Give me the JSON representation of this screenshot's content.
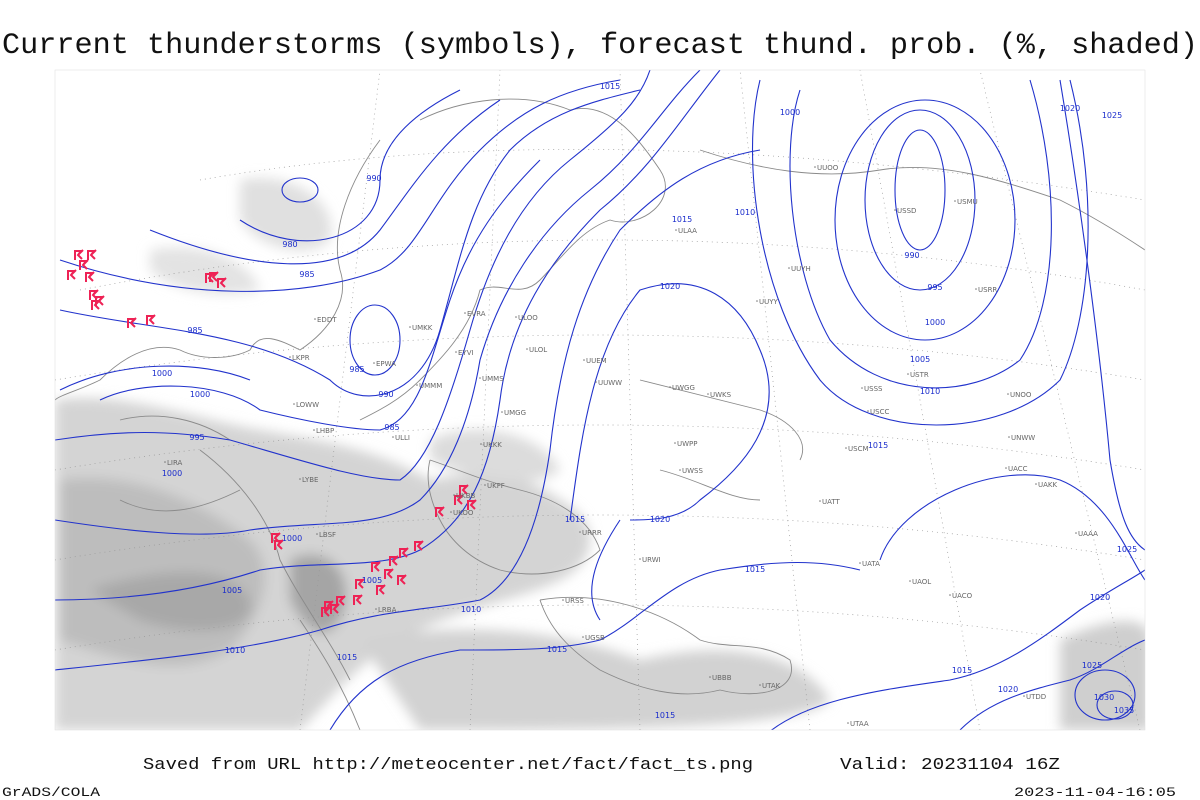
{
  "title": "Current thunderstorms (symbols), forecast thund. prob. (%, shaded)",
  "source": "Saved from URL http://meteocenter.net/fact/fact_ts.png",
  "valid": "Valid: 20231104 16Z",
  "credit": "GrADS/COLA",
  "timestamp": "2023-11-04-16:05",
  "isobar_labels": [
    "980",
    "985",
    "985",
    "990",
    "990",
    "985",
    "985",
    "1000",
    "1000",
    "995",
    "1000",
    "1000",
    "1005",
    "1005",
    "1010",
    "1015",
    "1010",
    "1015",
    "1015",
    "1015",
    "1015",
    "1020",
    "1020",
    "1015",
    "1010",
    "1000",
    "990",
    "995",
    "1000",
    "1005",
    "1010",
    "1015",
    "1020",
    "1025",
    "1020",
    "1025",
    "1015",
    "1020",
    "1025",
    "1030",
    "1035",
    "1015"
  ],
  "stations": [
    "ULAA",
    "ULOO",
    "ULOL",
    "UUEM",
    "UUWW",
    "UWGG",
    "UWKS",
    "UWPP",
    "UWSS",
    "UKKK",
    "UKBB",
    "UKOO",
    "UKFF",
    "URRR",
    "URWI",
    "URSS",
    "UGSB",
    "UTAK",
    "UBBB",
    "UUYY",
    "UUYH",
    "USSS",
    "USCC",
    "USCM",
    "UATT",
    "UACC",
    "UAKK",
    "UAAA",
    "UATA",
    "UAOL",
    "UACO",
    "UMMS",
    "UMKK",
    "UMGG",
    "EVRA",
    "EYVI",
    "EPWA",
    "LHBP",
    "LYBE",
    "LBSF",
    "LRBA",
    "LIRA",
    "EDDT",
    "LKPR",
    "LOWW",
    "ULLI",
    "UMMM",
    "UUOO",
    "USSD",
    "USMU",
    "USRR",
    "UNOO",
    "UNWW",
    "USTR",
    "UTAA",
    "UTDD"
  ]
}
